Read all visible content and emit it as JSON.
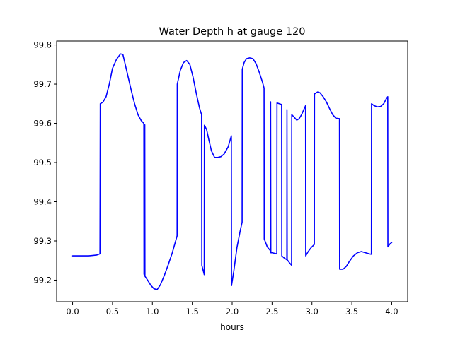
{
  "chart_data": {
    "type": "line",
    "title": "Water Depth h at gauge 120",
    "xlabel": "hours",
    "ylabel": "",
    "xlim": [
      -0.2,
      4.2
    ],
    "ylim": [
      99.145,
      99.81
    ],
    "grid": false,
    "legend": "none",
    "xticks": [
      0.0,
      0.5,
      1.0,
      1.5,
      2.0,
      2.5,
      3.0,
      3.5,
      4.0
    ],
    "xtick_labels": [
      "0.0",
      "0.5",
      "1.0",
      "1.5",
      "2.0",
      "2.5",
      "3.0",
      "3.5",
      "4.0"
    ],
    "yticks": [
      99.2,
      99.3,
      99.4,
      99.5,
      99.6,
      99.7,
      99.8
    ],
    "ytick_labels": [
      "99.2",
      "99.3",
      "99.4",
      "99.5",
      "99.6",
      "99.7",
      "99.8"
    ],
    "series": [
      {
        "color": "#0000ff",
        "points": [
          [
            0.0,
            99.262
          ],
          [
            0.1,
            99.262
          ],
          [
            0.2,
            99.262
          ],
          [
            0.3,
            99.264
          ],
          [
            0.343,
            99.267
          ],
          [
            0.347,
            99.65
          ],
          [
            0.38,
            99.654
          ],
          [
            0.42,
            99.668
          ],
          [
            0.46,
            99.7
          ],
          [
            0.5,
            99.74
          ],
          [
            0.55,
            99.763
          ],
          [
            0.6,
            99.777
          ],
          [
            0.63,
            99.776
          ],
          [
            0.66,
            99.75
          ],
          [
            0.7,
            99.715
          ],
          [
            0.74,
            99.68
          ],
          [
            0.78,
            99.648
          ],
          [
            0.82,
            99.622
          ],
          [
            0.86,
            99.607
          ],
          [
            0.893,
            99.6
          ],
          [
            0.895,
            99.215
          ],
          [
            0.898,
            99.598
          ],
          [
            0.905,
            99.596
          ],
          [
            0.907,
            99.21
          ],
          [
            0.94,
            99.2
          ],
          [
            0.98,
            99.187
          ],
          [
            1.02,
            99.178
          ],
          [
            1.06,
            99.176
          ],
          [
            1.1,
            99.188
          ],
          [
            1.15,
            99.212
          ],
          [
            1.2,
            99.24
          ],
          [
            1.25,
            99.27
          ],
          [
            1.31,
            99.313
          ],
          [
            1.312,
            99.7
          ],
          [
            1.35,
            99.735
          ],
          [
            1.39,
            99.755
          ],
          [
            1.43,
            99.76
          ],
          [
            1.47,
            99.75
          ],
          [
            1.51,
            99.718
          ],
          [
            1.55,
            99.677
          ],
          [
            1.59,
            99.64
          ],
          [
            1.617,
            99.622
          ],
          [
            1.62,
            99.238
          ],
          [
            1.65,
            99.214
          ],
          [
            1.652,
            99.595
          ],
          [
            1.68,
            99.584
          ],
          [
            1.71,
            99.556
          ],
          [
            1.74,
            99.53
          ],
          [
            1.78,
            99.513
          ],
          [
            1.82,
            99.513
          ],
          [
            1.86,
            99.515
          ],
          [
            1.9,
            99.522
          ],
          [
            1.95,
            99.54
          ],
          [
            1.99,
            99.568
          ],
          [
            1.992,
            99.186
          ],
          [
            2.02,
            99.222
          ],
          [
            2.06,
            99.283
          ],
          [
            2.1,
            99.325
          ],
          [
            2.125,
            99.348
          ],
          [
            2.127,
            99.738
          ],
          [
            2.15,
            99.755
          ],
          [
            2.18,
            99.765
          ],
          [
            2.22,
            99.767
          ],
          [
            2.26,
            99.765
          ],
          [
            2.3,
            99.752
          ],
          [
            2.34,
            99.73
          ],
          [
            2.38,
            99.705
          ],
          [
            2.4,
            99.69
          ],
          [
            2.402,
            99.305
          ],
          [
            2.44,
            99.285
          ],
          [
            2.48,
            99.275
          ],
          [
            2.482,
            99.655
          ],
          [
            2.485,
            99.27
          ],
          [
            2.5,
            99.27
          ],
          [
            2.54,
            99.268
          ],
          [
            2.56,
            99.267
          ],
          [
            2.562,
            99.652
          ],
          [
            2.59,
            99.65
          ],
          [
            2.62,
            99.648
          ],
          [
            2.622,
            99.262
          ],
          [
            2.65,
            99.257
          ],
          [
            2.685,
            99.252
          ],
          [
            2.687,
            99.635
          ],
          [
            2.69,
            99.252
          ],
          [
            2.72,
            99.244
          ],
          [
            2.745,
            99.238
          ],
          [
            2.747,
            99.622
          ],
          [
            2.78,
            99.615
          ],
          [
            2.81,
            99.608
          ],
          [
            2.84,
            99.612
          ],
          [
            2.87,
            99.622
          ],
          [
            2.9,
            99.636
          ],
          [
            2.92,
            99.645
          ],
          [
            2.922,
            99.262
          ],
          [
            2.95,
            99.272
          ],
          [
            2.99,
            99.283
          ],
          [
            3.03,
            99.291
          ],
          [
            3.032,
            99.675
          ],
          [
            3.07,
            99.68
          ],
          [
            3.1,
            99.678
          ],
          [
            3.14,
            99.668
          ],
          [
            3.18,
            99.655
          ],
          [
            3.22,
            99.638
          ],
          [
            3.26,
            99.622
          ],
          [
            3.3,
            99.613
          ],
          [
            3.345,
            99.612
          ],
          [
            3.347,
            99.228
          ],
          [
            3.39,
            99.228
          ],
          [
            3.43,
            99.235
          ],
          [
            3.47,
            99.248
          ],
          [
            3.52,
            99.262
          ],
          [
            3.57,
            99.27
          ],
          [
            3.62,
            99.273
          ],
          [
            3.67,
            99.27
          ],
          [
            3.72,
            99.267
          ],
          [
            3.745,
            99.266
          ],
          [
            3.747,
            99.65
          ],
          [
            3.78,
            99.645
          ],
          [
            3.82,
            99.642
          ],
          [
            3.86,
            99.643
          ],
          [
            3.9,
            99.65
          ],
          [
            3.93,
            99.662
          ],
          [
            3.95,
            99.668
          ],
          [
            3.952,
            99.285
          ],
          [
            3.98,
            99.293
          ],
          [
            4.0,
            99.296
          ]
        ]
      }
    ]
  }
}
